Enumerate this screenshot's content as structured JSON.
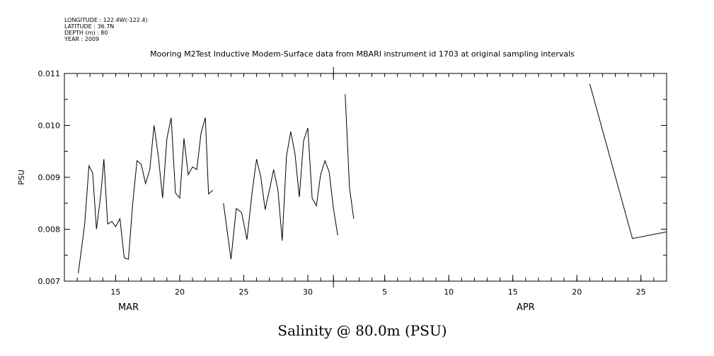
{
  "header_info": {
    "longitude": "LONGITUDE : 122.4W(-122.4)",
    "latitude": "LATITUDE : 36.7N",
    "depth": "DEPTH (m) : 80",
    "year": "YEAR : 2009"
  },
  "chart_data": {
    "type": "line",
    "title": "Mooring M2Test Inductive Modem-Surface data from MBARI instrument id 1703 at original sampling intervals",
    "xlabel": "Salinity @ 80.0m (PSU)",
    "ylabel": "PSU",
    "ylim": [
      0.007,
      0.011
    ],
    "xlim": [
      "2009-03-11",
      "2009-04-27"
    ],
    "yticks": [
      "0.007",
      "0.008",
      "0.009",
      "0.010",
      "0.011"
    ],
    "xticks": [
      {
        "date": "2009-03-15",
        "label": "15"
      },
      {
        "date": "2009-03-20",
        "label": "20"
      },
      {
        "date": "2009-03-25",
        "label": "25"
      },
      {
        "date": "2009-03-30",
        "label": "30"
      },
      {
        "date": "2009-04-05",
        "label": "5"
      },
      {
        "date": "2009-04-10",
        "label": "10"
      },
      {
        "date": "2009-04-15",
        "label": "15"
      },
      {
        "date": "2009-04-20",
        "label": "20"
      },
      {
        "date": "2009-04-25",
        "label": "25"
      }
    ],
    "month_labels": [
      {
        "date": "2009-03-16",
        "label": "MAR"
      },
      {
        "date": "2009-04-16",
        "label": "APR"
      }
    ],
    "month_boundary": "2009-04-01",
    "segments": [
      [
        [
          "2009-03-12 02:00",
          0.00715
        ],
        [
          "2009-03-12 14:00",
          0.0081
        ],
        [
          "2009-03-12 22:00",
          0.00922
        ],
        [
          "2009-03-13 05:00",
          0.00908
        ],
        [
          "2009-03-13 12:00",
          0.008
        ],
        [
          "2009-03-13 20:00",
          0.00865
        ],
        [
          "2009-03-14 02:00",
          0.00935
        ],
        [
          "2009-03-14 09:00",
          0.0081
        ],
        [
          "2009-03-14 17:00",
          0.00815
        ],
        [
          "2009-03-15 00:00",
          0.00805
        ],
        [
          "2009-03-15 08:00",
          0.0082
        ],
        [
          "2009-03-15 16:00",
          0.00745
        ],
        [
          "2009-03-16 00:00",
          0.00742
        ],
        [
          "2009-03-16 08:00",
          0.0085
        ],
        [
          "2009-03-16 16:00",
          0.00932
        ],
        [
          "2009-03-17 00:00",
          0.00925
        ],
        [
          "2009-03-17 08:00",
          0.00888
        ],
        [
          "2009-03-17 16:00",
          0.00915
        ],
        [
          "2009-03-18 00:00",
          0.01
        ],
        [
          "2009-03-18 08:00",
          0.0094
        ],
        [
          "2009-03-18 16:00",
          0.0086
        ],
        [
          "2009-03-19 00:00",
          0.00975
        ],
        [
          "2009-03-19 08:00",
          0.01015
        ],
        [
          "2009-03-19 16:00",
          0.0087
        ],
        [
          "2009-03-20 00:00",
          0.0086
        ],
        [
          "2009-03-20 08:00",
          0.00975
        ],
        [
          "2009-03-20 16:00",
          0.00905
        ],
        [
          "2009-03-21 00:00",
          0.0092
        ],
        [
          "2009-03-21 08:00",
          0.00915
        ],
        [
          "2009-03-21 16:00",
          0.00985
        ],
        [
          "2009-03-22 00:00",
          0.01015
        ],
        [
          "2009-03-22 06:00",
          0.00868
        ],
        [
          "2009-03-22 14:00",
          0.00875
        ]
      ],
      [
        [
          "2009-03-23 10:00",
          0.0085
        ],
        [
          "2009-03-24 00:00",
          0.00742
        ],
        [
          "2009-03-24 10:00",
          0.0084
        ],
        [
          "2009-03-24 20:00",
          0.00832
        ],
        [
          "2009-03-25 06:00",
          0.0078
        ],
        [
          "2009-03-25 16:00",
          0.00875
        ],
        [
          "2009-03-26 00:00",
          0.00935
        ],
        [
          "2009-03-26 08:00",
          0.009
        ],
        [
          "2009-03-26 16:00",
          0.00838
        ],
        [
          "2009-03-27 00:00",
          0.00875
        ],
        [
          "2009-03-27 08:00",
          0.00915
        ],
        [
          "2009-03-27 16:00",
          0.00875
        ],
        [
          "2009-03-28 00:00",
          0.00778
        ],
        [
          "2009-03-28 08:00",
          0.0094
        ],
        [
          "2009-03-28 16:00",
          0.00988
        ],
        [
          "2009-03-29 00:00",
          0.00945
        ],
        [
          "2009-03-29 08:00",
          0.00862
        ],
        [
          "2009-03-29 16:00",
          0.0097
        ],
        [
          "2009-03-30 00:00",
          0.00995
        ],
        [
          "2009-03-30 08:00",
          0.0086
        ],
        [
          "2009-03-30 16:00",
          0.00845
        ],
        [
          "2009-03-31 00:00",
          0.00905
        ],
        [
          "2009-03-31 08:00",
          0.00932
        ],
        [
          "2009-03-31 16:00",
          0.0091
        ],
        [
          "2009-04-01 00:00",
          0.0084
        ],
        [
          "2009-04-01 08:00",
          0.00788
        ]
      ],
      [
        [
          "2009-04-01 22:00",
          0.0106
        ],
        [
          "2009-04-02 06:00",
          0.0088
        ],
        [
          "2009-04-02 14:00",
          0.0082
        ]
      ],
      [
        [
          "2009-04-21 00:00",
          0.0108
        ],
        [
          "2009-04-24 08:00",
          0.00782
        ],
        [
          "2009-04-27 00:00",
          0.00795
        ]
      ]
    ]
  }
}
